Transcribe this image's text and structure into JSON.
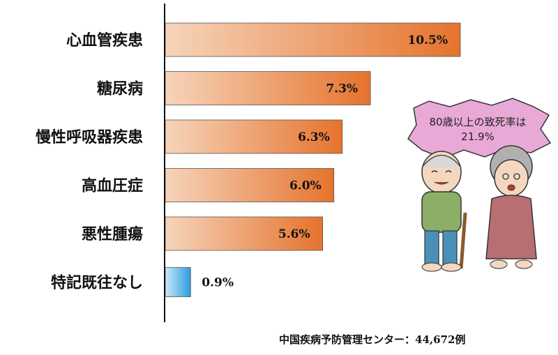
{
  "chart_data": {
    "type": "bar",
    "orientation": "horizontal",
    "categories": [
      "心血管疾患",
      "糖尿病",
      "慢性呼吸器疾患",
      "高血圧症",
      "悪性腫瘍",
      "特記既往なし"
    ],
    "values": [
      10.5,
      7.3,
      6.3,
      6.0,
      5.6,
      0.9
    ],
    "value_labels": [
      "10.5%",
      "7.3%",
      "6.3%",
      "6.0%",
      "5.6%",
      "0.9%"
    ],
    "xlim": [
      0,
      11
    ],
    "bar_colors": [
      "#e8823e",
      "#e8823e",
      "#e8823e",
      "#e8823e",
      "#e8823e",
      "#3ea6e0"
    ],
    "grid": false
  },
  "source": "中国疾病予防管理センター：44,672例",
  "illustration": {
    "bubble_line1": "80歳以上の致死率は",
    "bubble_line2": "21.9%",
    "bubble_color": "#e9a9d6"
  }
}
